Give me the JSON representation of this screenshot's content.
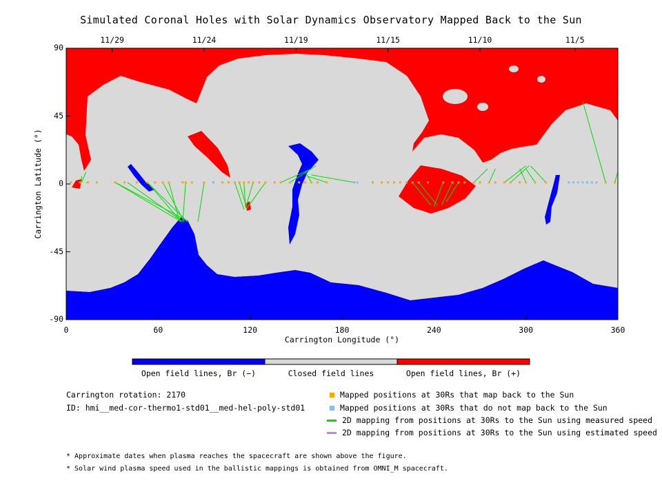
{
  "chart_data": {
    "type": "map",
    "title": "Simulated Coronal Holes with Solar Dynamics Observatory Mapped Back to the Sun",
    "xlabel": "Carrington Longitude (°)",
    "ylabel": "Carrington Latitude (°)",
    "xlim": [
      0,
      360
    ],
    "ylim": [
      -90,
      90
    ],
    "x_ticks": [
      "0",
      "60",
      "120",
      "180",
      "240",
      "300",
      "360"
    ],
    "y_ticks": [
      "90",
      "45",
      "0",
      "-45",
      "-90"
    ],
    "top_axis_dates": [
      {
        "label": "11/29",
        "lon": 30
      },
      {
        "label": "11/24",
        "lon": 90
      },
      {
        "label": "11/19",
        "lon": 150
      },
      {
        "label": "11/15",
        "lon": 210
      },
      {
        "label": "11/10",
        "lon": 270
      },
      {
        "label": "11/5",
        "lon": 332
      }
    ],
    "colors": {
      "open_negative": "#0000ff",
      "closed": "#d9d9d9",
      "open_positive": "#ff0000",
      "mapped": "#ffa500",
      "unmapped": "#7fbfff",
      "measured": "#00dd00",
      "estimated": "#c080ff"
    },
    "colorbar_labels": [
      "Open field lines, Br (−)",
      "Closed field lines",
      "Open field lines, Br (+)"
    ],
    "footpoints_lat": 1,
    "mapped_longitudes": [
      3,
      9,
      14,
      20,
      32,
      38,
      46,
      53,
      58,
      63,
      67,
      76,
      78,
      82,
      90,
      96,
      102,
      106,
      110,
      113,
      116,
      119,
      122,
      126,
      130,
      136,
      140,
      146,
      152,
      156,
      160,
      164,
      170,
      188,
      200,
      206,
      210,
      214,
      218,
      222,
      226,
      230,
      236,
      246,
      252,
      256,
      260,
      266,
      270,
      276,
      280,
      286,
      290,
      296,
      300,
      306,
      313,
      340,
      352,
      358
    ],
    "unmapped_longitudes": [
      96,
      188,
      190,
      328,
      331,
      334,
      337,
      340,
      343,
      346
    ],
    "mapping_lines": [
      {
        "from": 10,
        "to": [
          [
            10,
            5
          ],
          [
            13,
            8
          ]
        ]
      },
      {
        "from": 32,
        "to": [
          [
            75,
            -25
          ],
          [
            80,
            -25
          ]
        ]
      },
      {
        "from": 40,
        "to": [
          [
            76,
            -25
          ]
        ]
      },
      {
        "from": 53,
        "to": [
          [
            75,
            -25
          ],
          [
            79,
            -25
          ]
        ]
      },
      {
        "from": 63,
        "to": [
          [
            77,
            -25
          ]
        ]
      },
      {
        "from": 67,
        "to": [
          [
            74,
            -25
          ]
        ]
      },
      {
        "from": 78,
        "to": [
          [
            76,
            -25
          ]
        ]
      },
      {
        "from": 90,
        "to": [
          [
            86,
            -25
          ]
        ]
      },
      {
        "from": 110,
        "to": [
          [
            116,
            -17
          ]
        ]
      },
      {
        "from": 113,
        "to": [
          [
            118,
            -17
          ]
        ]
      },
      {
        "from": 116,
        "to": [
          [
            117,
            -15
          ]
        ]
      },
      {
        "from": 122,
        "to": [
          [
            117,
            -16
          ]
        ]
      },
      {
        "from": 130,
        "to": [
          [
            118,
            -16
          ]
        ]
      },
      {
        "from": 140,
        "to": [
          [
            160,
            10
          ]
        ]
      },
      {
        "from": 146,
        "to": [
          [
            163,
            12
          ]
        ]
      },
      {
        "from": 160,
        "to": [
          [
            156,
            8
          ]
        ]
      },
      {
        "from": 170,
        "to": [
          [
            158,
            5
          ]
        ]
      },
      {
        "from": 188,
        "to": [
          [
            160,
            6
          ]
        ]
      },
      {
        "from": 226,
        "to": [
          [
            238,
            -14
          ]
        ]
      },
      {
        "from": 230,
        "to": [
          [
            242,
            -14
          ]
        ]
      },
      {
        "from": 246,
        "to": [
          [
            240,
            -15
          ]
        ]
      },
      {
        "from": 252,
        "to": [
          [
            245,
            -14
          ]
        ]
      },
      {
        "from": 256,
        "to": [
          [
            248,
            -12
          ]
        ]
      },
      {
        "from": 266,
        "to": [
          [
            275,
            10
          ]
        ]
      },
      {
        "from": 276,
        "to": [
          [
            280,
            10
          ]
        ]
      },
      {
        "from": 286,
        "to": [
          [
            300,
            12
          ]
        ]
      },
      {
        "from": 290,
        "to": [
          [
            302,
            12
          ]
        ]
      },
      {
        "from": 300,
        "to": [
          [
            296,
            10
          ]
        ]
      },
      {
        "from": 306,
        "to": [
          [
            300,
            10
          ]
        ]
      },
      {
        "from": 313,
        "to": [
          [
            303,
            12
          ]
        ]
      },
      {
        "from": 352,
        "to": [
          [
            337,
            55
          ]
        ]
      },
      {
        "from": 358,
        "to": [
          [
            360,
            8
          ]
        ]
      }
    ]
  },
  "info": {
    "rotation": "Carrington rotation: 2170",
    "id": "ID: hmi__med-cor-thermo1-std01__med-hel-poly-std01"
  },
  "legend": {
    "mapped": "Mapped positions at 30Rs that map back to the Sun",
    "unmapped": "Mapped positions at 30Rs that do not map back to the Sun",
    "measured": "2D mapping from positions at 30Rs to the Sun using measured speed",
    "estimated": "2D mapping from positions at 30Rs to the Sun using estimated speed"
  },
  "notes": [
    "* Approximate dates when plasma reaches the spacecraft are shown above the figure.",
    "* Solar wind plasma speed used in the ballistic mappings is obtained from OMNI_M spacecraft."
  ]
}
